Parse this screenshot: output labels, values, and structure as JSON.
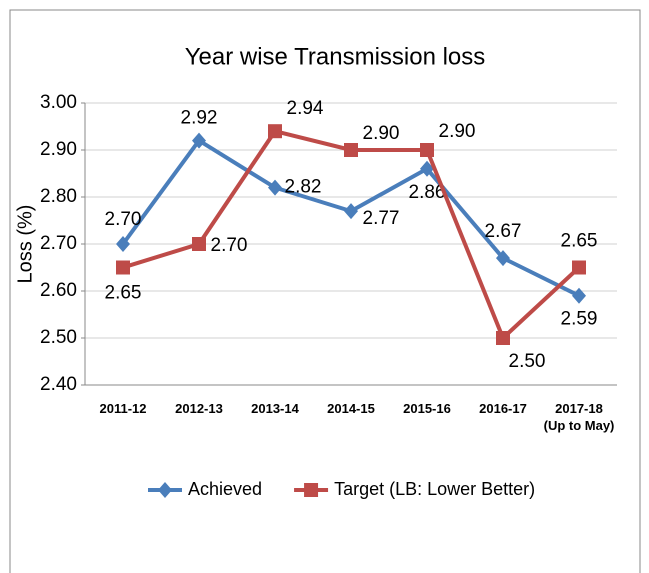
{
  "chart_data": {
    "type": "line",
    "title": "Year wise Transmission loss",
    "y_label": "Loss (%)",
    "categories": [
      "2011-12",
      "2012-13",
      "2013-14",
      "2014-15",
      "2015-16",
      "2016-17",
      "2017-18\n(Up to May)"
    ],
    "series": [
      {
        "name": "Achieved",
        "color": "#4a7ebb",
        "marker": "diamond",
        "values": [
          2.7,
          2.92,
          2.82,
          2.77,
          2.86,
          2.67,
          2.59
        ],
        "value_labels": [
          "2.70",
          "2.92",
          "2.82",
          "2.77",
          "2.86",
          "2.67",
          "2.59"
        ]
      },
      {
        "name": "Target (LB: Lower Better)",
        "color": "#be4b48",
        "marker": "square",
        "values": [
          2.65,
          2.7,
          2.94,
          2.9,
          2.9,
          2.5,
          2.65
        ],
        "value_labels": [
          "2.65",
          "2.70",
          "2.94",
          "2.90",
          "2.90",
          "2.50",
          "2.65"
        ]
      }
    ],
    "ylim": [
      2.4,
      3.0
    ],
    "yticks": [
      {
        "value": 2.4,
        "label": "2.40"
      },
      {
        "value": 2.5,
        "label": "2.50"
      },
      {
        "value": 2.6,
        "label": "2.60"
      },
      {
        "value": 2.7,
        "label": "2.70"
      },
      {
        "value": 2.8,
        "label": "2.80"
      },
      {
        "value": 2.9,
        "label": "2.90"
      },
      {
        "value": 3.0,
        "label": "3.00"
      }
    ],
    "grid": true,
    "legend": "bottom"
  }
}
